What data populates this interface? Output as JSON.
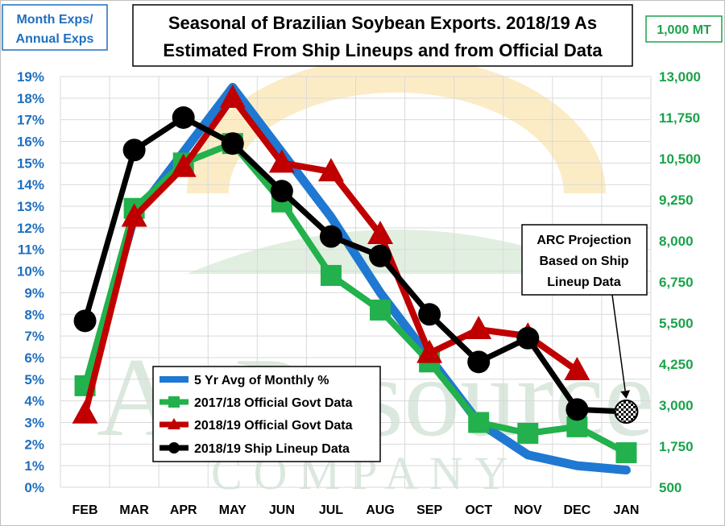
{
  "colors": {
    "avg": "#1f78d1",
    "govt_1718": "#22b14c",
    "govt_1819": "#c00000",
    "ship": "#000000",
    "left_axis": "#1f6fbf",
    "right_axis": "#1aa34a"
  },
  "watermark": {
    "line1": "AgResource",
    "line2": "COMPANY"
  },
  "chart_data": {
    "type": "line",
    "title_lines": [
      "Seasonal of Brazilian Soybean Exports.  2018/19 As",
      "Estimated From Ship Lineups and from Official Data"
    ],
    "left_unit_lines": [
      "Month Exps/",
      "Annual Exps"
    ],
    "right_unit": "1,000 MT",
    "categories": [
      "FEB",
      "MAR",
      "APR",
      "MAY",
      "JUN",
      "JUL",
      "AUG",
      "SEP",
      "OCT",
      "NOV",
      "DEC",
      "JAN"
    ],
    "y_left": {
      "min": 0,
      "max": 19,
      "step": 1,
      "tick_labels": [
        "0%",
        "1%",
        "2%",
        "3%",
        "4%",
        "5%",
        "6%",
        "7%",
        "8%",
        "9%",
        "10%",
        "11%",
        "12%",
        "13%",
        "14%",
        "15%",
        "16%",
        "17%",
        "18%",
        "19%"
      ]
    },
    "y_right": {
      "min": 500,
      "max": 13000,
      "tick_labels": [
        "500",
        "1,750",
        "3,000",
        "4,250",
        "5,500",
        "6,750",
        "8,000",
        "9,250",
        "10,500",
        "11,750",
        "13,000"
      ]
    },
    "grid": true,
    "series": [
      {
        "name": "5 Yr Avg of Monthly %",
        "color_key": "avg",
        "marker": "none",
        "values": [
          4.5,
          12.5,
          15.5,
          18.5,
          15.5,
          12.5,
          9.0,
          6.0,
          3.0,
          1.5,
          1.0,
          0.8
        ]
      },
      {
        "name": "2017/18 Official Govt Data",
        "color_key": "govt_1718",
        "marker": "square",
        "values": [
          4.7,
          12.9,
          15.0,
          15.9,
          13.2,
          9.8,
          8.2,
          5.8,
          3.0,
          2.5,
          2.8,
          1.6
        ]
      },
      {
        "name": "2018/19 Official Govt Data",
        "color_key": "govt_1819",
        "marker": "triangle",
        "values": [
          3.4,
          12.5,
          14.8,
          18.0,
          15.0,
          14.6,
          11.7,
          6.2,
          7.3,
          7.0,
          5.4,
          null
        ]
      },
      {
        "name": "2018/19 Ship Lineup Data",
        "color_key": "ship",
        "marker": "circle",
        "values": [
          7.7,
          15.6,
          17.1,
          15.9,
          13.7,
          11.6,
          10.7,
          8.0,
          5.8,
          6.9,
          3.6,
          3.5
        ]
      }
    ],
    "annotation": {
      "lines": [
        "ARC Projection",
        "Based on Ship",
        "Lineup Data"
      ],
      "points_to_category": "JAN"
    },
    "legend_position": "bottom-left"
  }
}
